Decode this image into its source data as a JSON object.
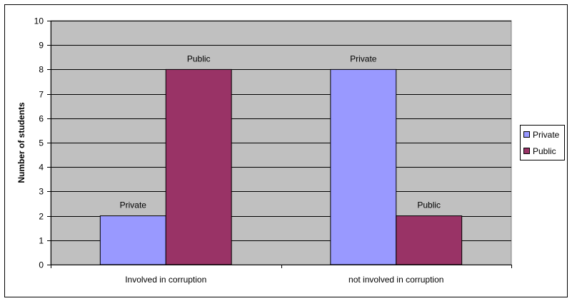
{
  "chart_data": {
    "type": "bar",
    "title": "",
    "xlabel": "",
    "ylabel": "Number of students",
    "categories": [
      "Involved in corruption",
      "not involved in corruption"
    ],
    "series": [
      {
        "name": "Private",
        "values": [
          2,
          8
        ],
        "color": "#9999ff"
      },
      {
        "name": "Public",
        "values": [
          8,
          2
        ],
        "color": "#993366"
      }
    ],
    "ylim": [
      0,
      10
    ],
    "yticks": [
      0,
      1,
      2,
      3,
      4,
      5,
      6,
      7,
      8,
      9,
      10
    ],
    "grid": true,
    "legend_position": "right",
    "plot_background": "#c0c0c0",
    "data_labels": "series name above each bar"
  }
}
